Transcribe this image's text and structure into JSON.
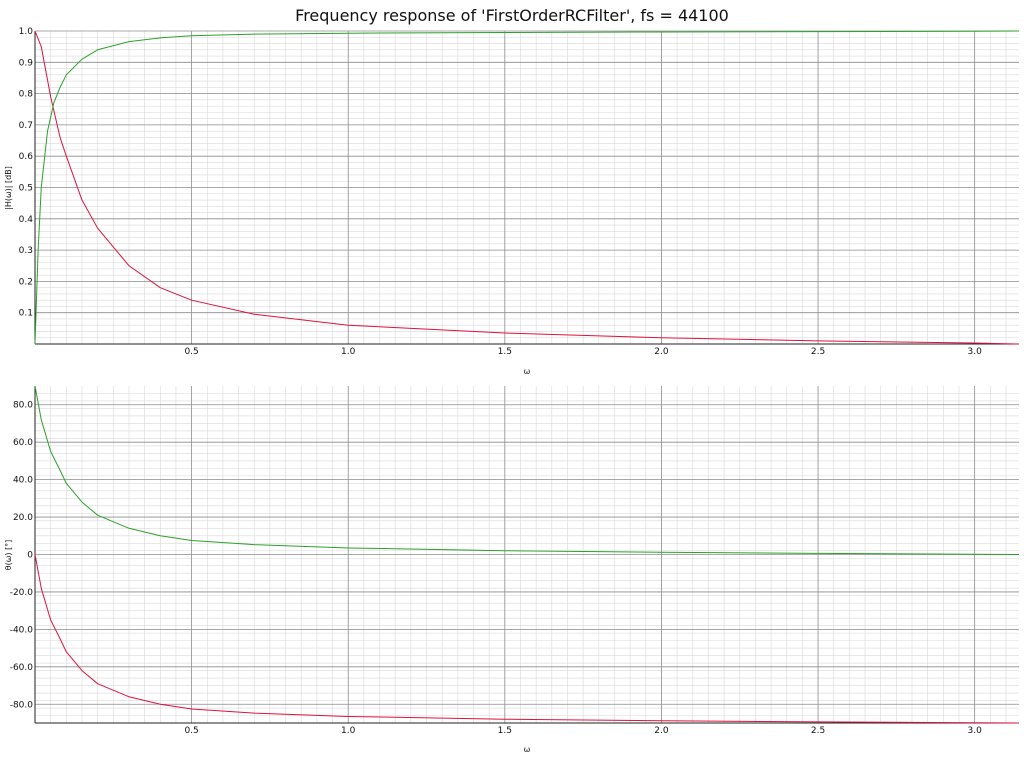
{
  "title": "Frequency response of 'FirstOrderRCFilter', fs = 44100",
  "colors": {
    "lowpass": "#dc143c",
    "highpass": "#2ca02c",
    "grid_major": "#8c8c8c",
    "grid_minor": "#d9d9d9"
  },
  "chart_data": [
    {
      "type": "line",
      "xlabel": "ω",
      "ylabel": "|H(ω)| [dB]",
      "xlim": [
        0,
        3.14159
      ],
      "ylim": [
        0,
        1.0
      ],
      "x_ticks": [
        "0.5",
        "1.0",
        "1.5",
        "2.0",
        "2.5",
        "3.0"
      ],
      "y_ticks": [
        "1.0",
        "0.9",
        "0.8",
        "0.7",
        "0.6",
        "0.5",
        "0.4",
        "0.3",
        "0.2",
        "0.1"
      ],
      "grid": true,
      "series": [
        {
          "color": "#dc143c",
          "x": [
            0,
            0.02,
            0.05,
            0.08,
            0.1,
            0.15,
            0.2,
            0.3,
            0.4,
            0.5,
            0.7,
            1.0,
            1.5,
            2.0,
            2.5,
            3.0,
            3.14159
          ],
          "y": [
            1.0,
            0.95,
            0.79,
            0.66,
            0.6,
            0.46,
            0.37,
            0.25,
            0.18,
            0.14,
            0.095,
            0.06,
            0.035,
            0.02,
            0.01,
            0.003,
            0.0
          ]
        },
        {
          "color": "#2ca02c",
          "x": [
            0,
            0.01,
            0.02,
            0.04,
            0.06,
            0.08,
            0.1,
            0.15,
            0.2,
            0.3,
            0.4,
            0.5,
            0.7,
            1.0,
            1.5,
            2.0,
            2.5,
            3.0,
            3.14159
          ],
          "y": [
            0.0,
            0.3,
            0.5,
            0.68,
            0.77,
            0.82,
            0.86,
            0.91,
            0.94,
            0.966,
            0.978,
            0.985,
            0.99,
            0.993,
            0.995,
            0.997,
            0.998,
            0.999,
            1.0
          ]
        }
      ]
    },
    {
      "type": "line",
      "xlabel": "ω",
      "ylabel": "θ(ω) [°]",
      "xlim": [
        0,
        3.14159
      ],
      "ylim": [
        -90,
        90
      ],
      "x_ticks": [
        "0.5",
        "1.0",
        "1.5",
        "2.0",
        "2.5",
        "3.0"
      ],
      "y_ticks": [
        "80.0",
        "60.0",
        "40.0",
        "20.0",
        "0",
        "-20.0",
        "-40.0",
        "-60.0",
        "-80.0"
      ],
      "grid": true,
      "series": [
        {
          "color": "#2ca02c",
          "x": [
            0,
            0.02,
            0.05,
            0.08,
            0.1,
            0.15,
            0.2,
            0.3,
            0.4,
            0.5,
            0.7,
            1.0,
            1.5,
            2.0,
            2.5,
            3.0,
            3.14159
          ],
          "y": [
            90,
            72,
            55,
            45,
            38,
            28,
            21,
            14,
            10,
            7.5,
            5.3,
            3.5,
            2.0,
            1.2,
            0.6,
            0.1,
            0
          ]
        },
        {
          "color": "#dc143c",
          "x": [
            0,
            0.02,
            0.05,
            0.08,
            0.1,
            0.15,
            0.2,
            0.3,
            0.4,
            0.5,
            0.7,
            1.0,
            1.5,
            2.0,
            2.5,
            3.0,
            3.14159
          ],
          "y": [
            0,
            -18,
            -35,
            -45,
            -52,
            -62,
            -69,
            -76,
            -80,
            -82.5,
            -84.7,
            -86.5,
            -88,
            -88.8,
            -89.4,
            -89.9,
            -90
          ]
        }
      ]
    }
  ]
}
